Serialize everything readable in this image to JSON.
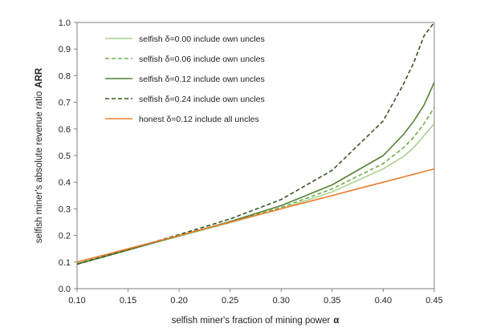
{
  "chart_data": {
    "type": "line",
    "title": "",
    "xlabel": "selfish miner's fraction of mining power",
    "xlabel_symbol": "α",
    "ylabel": "selfish miner's absolute revenue ratio",
    "ylabel_symbol": "ARR",
    "xlim": [
      0.1,
      0.45
    ],
    "ylim": [
      0.0,
      1.0
    ],
    "x_ticks": [
      "0.10",
      "0.15",
      "0.20",
      "0.25",
      "0.30",
      "0.35",
      "0.40",
      "0.45"
    ],
    "y_ticks": [
      "0.0",
      "0.1",
      "0.2",
      "0.3",
      "0.4",
      "0.5",
      "0.6",
      "0.7",
      "0.8",
      "0.9",
      "1.0"
    ],
    "grid": false,
    "legend_position": "top-left",
    "x": [
      0.1,
      0.15,
      0.2,
      0.25,
      0.3,
      0.35,
      0.4,
      0.42,
      0.43,
      0.44,
      0.45
    ],
    "series": [
      {
        "name": "selfish δ=0.00 include own uncles",
        "color": "#a9d18e",
        "dash": "solid",
        "values": [
          0.095,
          0.147,
          0.197,
          0.248,
          0.3,
          0.364,
          0.45,
          0.497,
          0.53,
          0.575,
          0.62
        ]
      },
      {
        "name": "selfish δ=0.06 include own uncles",
        "color": "#70ad47",
        "dash": "dashed",
        "values": [
          0.093,
          0.146,
          0.198,
          0.25,
          0.305,
          0.375,
          0.47,
          0.53,
          0.57,
          0.62,
          0.68
        ]
      },
      {
        "name": "selfish δ=0.12 include own uncles",
        "color": "#548235",
        "dash": "solid",
        "values": [
          0.092,
          0.145,
          0.199,
          0.252,
          0.312,
          0.39,
          0.5,
          0.58,
          0.63,
          0.69,
          0.775
        ]
      },
      {
        "name": "selfish δ=0.24 include own uncles",
        "color": "#375623",
        "dash": "dashed",
        "values": [
          0.092,
          0.147,
          0.203,
          0.262,
          0.335,
          0.445,
          0.63,
          0.77,
          0.85,
          0.95,
          1.0
        ]
      },
      {
        "name": "honest δ=0.12 include all uncles",
        "color": "#ed7d31",
        "dash": "solid",
        "values": [
          0.1,
          0.15,
          0.2,
          0.25,
          0.3,
          0.35,
          0.4,
          0.42,
          0.43,
          0.44,
          0.45
        ]
      }
    ]
  }
}
